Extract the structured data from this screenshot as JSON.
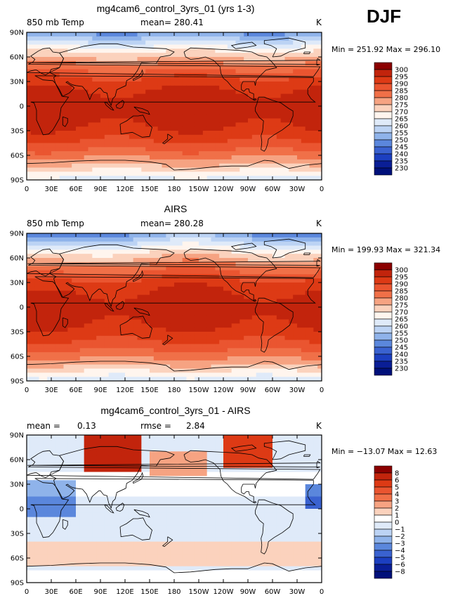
{
  "season": "DJF",
  "lat_ticks": [
    "90N",
    "60N",
    "30N",
    "0",
    "30S",
    "60S",
    "90S"
  ],
  "lon_ticks": [
    "0",
    "30E",
    "60E",
    "90E",
    "120E",
    "150E",
    "180",
    "150W",
    "120W",
    "90W",
    "60W",
    "30W",
    "0"
  ],
  "panels": [
    {
      "title": "mg4cam6_control_3yrs_01 (yrs 1-3)",
      "left_label": "850 mb Temp",
      "center_label": "mean= 280.41",
      "unit": "K",
      "minmax": "Min = 251.92 Max = 296.10",
      "legend_labels": [
        "300",
        "295",
        "290",
        "285",
        "280",
        "275",
        "270",
        "265",
        "260",
        "255",
        "250",
        "245",
        "240",
        "235",
        "230"
      ]
    },
    {
      "title": "AIRS",
      "left_label": "850 mb Temp",
      "center_label": "mean= 280.28",
      "unit": "K",
      "minmax": "Min = 199.93 Max = 321.34",
      "legend_labels": [
        "300",
        "295",
        "290",
        "285",
        "280",
        "275",
        "270",
        "265",
        "260",
        "255",
        "250",
        "245",
        "240",
        "235",
        "230"
      ]
    },
    {
      "title": "mg4cam6_control_3yrs_01 - AIRS",
      "left_label": "mean =",
      "left_value": "0.13",
      "center_label": "rmse =",
      "center_value": "2.84",
      "unit": "K",
      "minmax": "Min = −13.07 Max =  12.63",
      "legend_labels": [
        "8",
        "6",
        "5",
        "4",
        "3",
        "2",
        "1",
        "0",
        "−1",
        "−2",
        "−3",
        "−4",
        "−5",
        "−6",
        "−8"
      ]
    }
  ],
  "temp_colors": [
    "#8b0000",
    "#c2240c",
    "#dd3a15",
    "#ea5530",
    "#f07048",
    "#f6a382",
    "#fbd2bd",
    "#fff5ee",
    "#dfeaf9",
    "#bcd3f4",
    "#8fb3ea",
    "#5b87dc",
    "#3a62d0",
    "#1c3fc0",
    "#0a1e96",
    "#00107a"
  ],
  "diff_colors": [
    "#8b0000",
    "#c2240c",
    "#dd3a15",
    "#ea5530",
    "#f07048",
    "#f6a382",
    "#fbd2bd",
    "#ffffff",
    "#dfeaf9",
    "#bcd3f4",
    "#8fb3ea",
    "#5b87dc",
    "#3a62d0",
    "#1c3fc0",
    "#0a1e96",
    "#00107a"
  ]
}
